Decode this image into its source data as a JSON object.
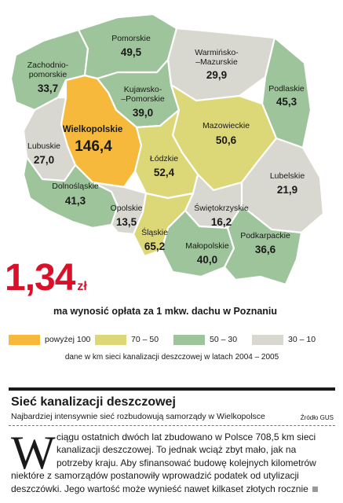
{
  "colors": {
    "above_100": "#f6b93b",
    "range_70_50": "#dcd878",
    "range_50_30": "#9ec49b",
    "range_30_10": "#d8d8d0",
    "price_red": "#d9102a"
  },
  "map": {
    "regions": [
      {
        "id": "pomorskie",
        "name": "Pomorskie",
        "value": "49,5",
        "category": "range_50_30"
      },
      {
        "id": "warminsko-mazurskie",
        "name_line1": "Warmińsko-",
        "name_line2": "–Mazurskie",
        "value": "29,9",
        "category": "range_30_10"
      },
      {
        "id": "zachodniopomorskie",
        "name_line1": "Zachodnio-",
        "name_line2": "pomorskie",
        "value": "33,7",
        "category": "range_50_30"
      },
      {
        "id": "podlaskie",
        "name": "Podlaskie",
        "value": "45,3",
        "category": "range_50_30"
      },
      {
        "id": "kujawsko-pomorskie",
        "name_line1": "Kujawsko-",
        "name_line2": "–Pomorskie",
        "value": "39,0",
        "category": "range_50_30"
      },
      {
        "id": "wielkopolskie",
        "name": "Wielkopolskie",
        "value": "146,4",
        "category": "above_100"
      },
      {
        "id": "mazowieckie",
        "name": "Mazowieckie",
        "value": "50,6",
        "category": "range_70_50"
      },
      {
        "id": "lubuskie",
        "name": "Lubuskie",
        "value": "27,0",
        "category": "range_30_10"
      },
      {
        "id": "lodzkie",
        "name": "Łódzkie",
        "value": "52,4",
        "category": "range_70_50"
      },
      {
        "id": "lubelskie",
        "name": "Lubelskie",
        "value": "21,9",
        "category": "range_30_10"
      },
      {
        "id": "dolnoslaskie",
        "name": "Dolnośląskie",
        "value": "41,3",
        "category": "range_50_30"
      },
      {
        "id": "opolskie",
        "name": "Opolskie",
        "value": "13,5",
        "category": "range_30_10"
      },
      {
        "id": "swietokrzyskie",
        "name": "Świętokrzyskie",
        "value": "16,2",
        "category": "range_30_10"
      },
      {
        "id": "slaskie",
        "name": "Śląskie",
        "value": "65,2",
        "category": "range_70_50"
      },
      {
        "id": "malopolskie",
        "name": "Małopolskie",
        "value": "40,0",
        "category": "range_50_30"
      },
      {
        "id": "podkarpackie",
        "name": "Podkarpackie",
        "value": "36,6",
        "category": "range_50_30"
      }
    ]
  },
  "price": {
    "value": "1,34",
    "unit": "zł",
    "caption": "ma wynosić opłata za 1 mkw. dachu w Poznaniu"
  },
  "legend": {
    "items": [
      {
        "label": "powyżej 100",
        "category": "above_100"
      },
      {
        "label": "70 – 50",
        "category": "range_70_50"
      },
      {
        "label": "50 – 30",
        "category": "range_50_30"
      },
      {
        "label": "30 – 10",
        "category": "range_30_10"
      }
    ],
    "note": "dane w km sieci kanalizacji deszczowej w latach 2004 – 2005"
  },
  "article": {
    "title": "Sieć kanalizacji deszczowej",
    "subtitle": "Najbardziej intensywnie sieć rozbudowują samorządy w Wielkopolsce",
    "source": "Źródło GUS",
    "dropcap": "W",
    "lines": [
      "ciągu ostatnich dwóch lat zbudowano w Polsce 708,5 km sieci",
      "kanalizacji deszczowej. To jednak wciąż zbyt mało, jak na",
      "potrzeby kraju. Aby sfinansować budowę kolejnych kilometrów",
      "niektóre z samorządów postanowiły wprowadzić podatek od utylizacji",
      "deszczówki. Jego wartość może wynieść nawet kilkaset złotych rocznie"
    ]
  }
}
